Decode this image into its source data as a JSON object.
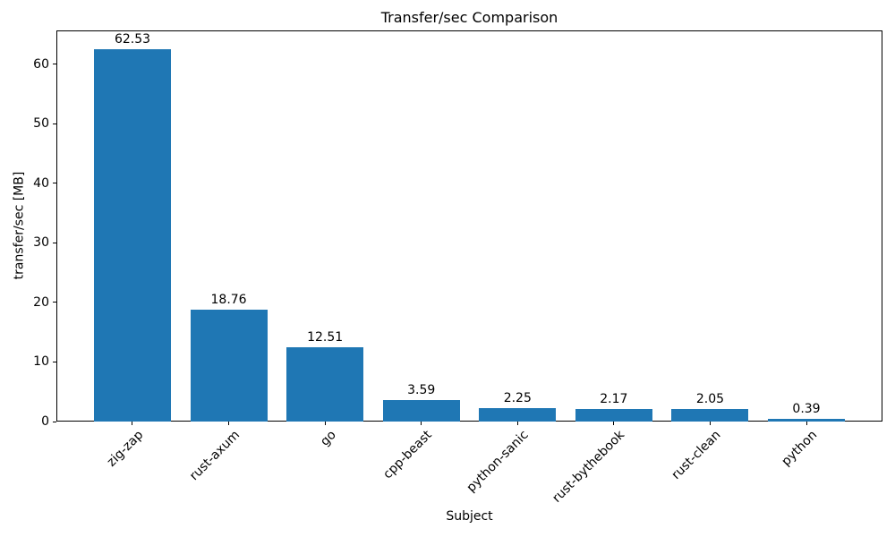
{
  "chart_data": {
    "type": "bar",
    "title": "Transfer/sec Comparison",
    "xlabel": "Subject",
    "ylabel": "transfer/sec [MB]",
    "categories": [
      "zig-zap",
      "rust-axum",
      "go",
      "cpp-beast",
      "python-sanic",
      "rust-bythebook",
      "rust-clean",
      "python"
    ],
    "values": [
      62.53,
      18.76,
      12.51,
      3.59,
      2.25,
      2.17,
      2.05,
      0.39
    ],
    "value_labels": [
      "62.53",
      "18.76",
      "12.51",
      "3.59",
      "2.25",
      "2.17",
      "2.05",
      "0.39"
    ],
    "yticks": [
      0,
      10,
      20,
      30,
      40,
      50,
      60
    ],
    "ylim": [
      0,
      65.66
    ],
    "xlim": [
      -0.79,
      7.79
    ],
    "bar_width_units": 0.8,
    "x_tick_rotation_deg": 45,
    "grid": false,
    "legend": "none",
    "bar_color": "#1f77b4",
    "text_color": "#000000",
    "background_color": "#ffffff"
  }
}
